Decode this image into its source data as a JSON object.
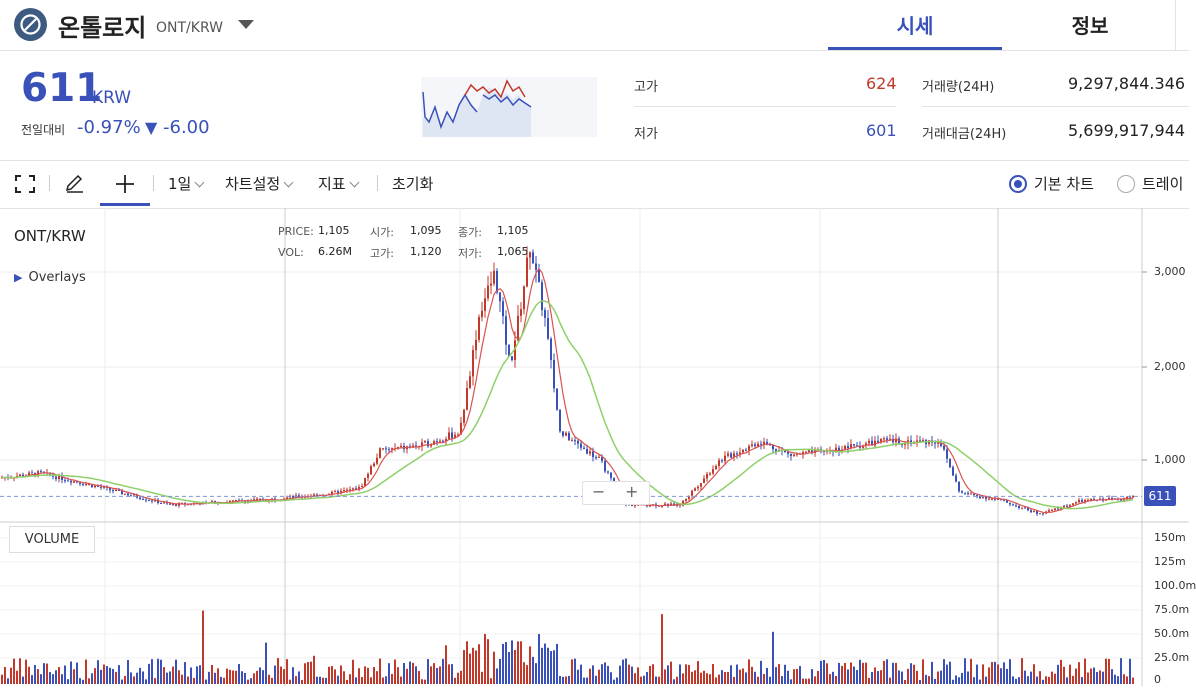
{
  "header": {
    "coin_name": "온톨로지",
    "pair": "ONT/KRW",
    "tabs": [
      {
        "label": "시세"
      },
      {
        "label": "정보"
      }
    ]
  },
  "price": {
    "current": "611",
    "currency": "KRW",
    "change_label": "전일대비",
    "change_pct": "-0.97%",
    "change_arrow": "▼",
    "change_amount": "-6.00"
  },
  "stats": {
    "high_label": "고가",
    "high_value": "624",
    "low_label": "저가",
    "low_value": "601",
    "volume_label": "거래량(24H)",
    "volume_value": "9,297,844.346",
    "amount_label": "거래대금(24H)",
    "amount_value": "5,699,917,944"
  },
  "toolbar": {
    "interval": "1일",
    "chart_settings": "차트설정",
    "indicators": "지표",
    "reset": "초기화",
    "chart_types": [
      {
        "label": "기본 차트",
        "selected": true
      },
      {
        "label": "트레이",
        "selected": false
      }
    ]
  },
  "chart": {
    "pair": "ONT/KRW",
    "overlays_label": "Overlays",
    "info": {
      "price_label": "PRICE:",
      "price_value": "1,105",
      "open_label": "시가:",
      "open_value": "1,095",
      "close_label": "종가:",
      "close_value": "1,105",
      "vol_label": "VOL:",
      "vol_value": "6.26M",
      "high_label": "고가:",
      "high_value": "1,120",
      "low_label": "저가:",
      "low_value": "1,065"
    },
    "price_axis": [
      "3,000",
      "2,000",
      "1,000"
    ],
    "current_price_tag": "611",
    "volume_button": "VOLUME",
    "volume_axis": [
      "150m",
      "125m",
      "100.0m",
      "75.0m",
      "50.0m",
      "25.0m",
      "0"
    ],
    "colors": {
      "up": "#c0392b",
      "down": "#3951b8",
      "ma_fast": "#d9534f",
      "ma_slow": "#8fd06a",
      "accent": "#3951b8"
    }
  }
}
